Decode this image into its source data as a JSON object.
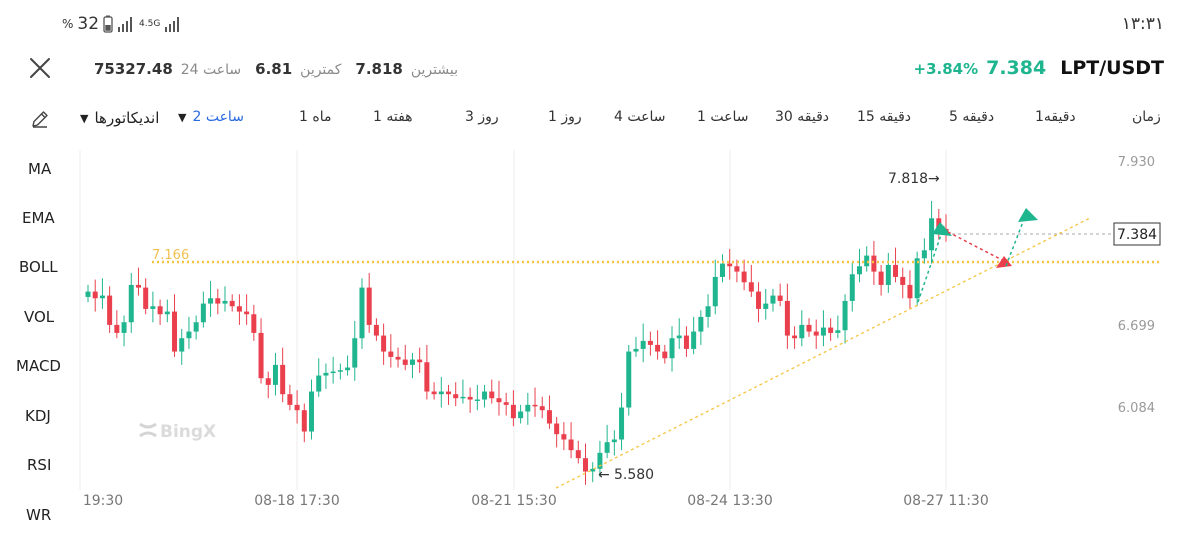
{
  "status_bar": {
    "time": "۱۳:۳۱",
    "battery": "32",
    "percent_sign": "%",
    "network": "4.5G"
  },
  "header": {
    "pair": "LPT/USDT",
    "price": "7.384",
    "change": "+3.84%",
    "high_label": "بیشترین",
    "high_value": "7.818",
    "low_label": "کمترین",
    "low_value": "6.81",
    "vol_label": "ساعت 24",
    "vol_value": "75327.48"
  },
  "timeframes": {
    "label": "زمان",
    "items": [
      "1دقیقه",
      "5 دقیقه",
      "15 دقیقه",
      "30 دقیقه",
      "1 ساعت",
      "4 ساعت",
      "1 روز",
      "3 روز",
      "1 هفته",
      "1 ماه"
    ],
    "selected": "2 ساعت",
    "indicators": "اندیکاتورها"
  },
  "indicators": [
    "MA",
    "EMA",
    "BOLL",
    "VOL",
    "MACD",
    "KDJ",
    "RSI",
    "WR"
  ],
  "watermark": "BingX",
  "colors": {
    "up": "#1fb58f",
    "down": "#ea3f4c",
    "alert": "#f5c542",
    "accent": "#2b6be0"
  },
  "chart_data": {
    "type": "candlestick",
    "y_ticks": [
      "7.930",
      "6.699",
      "6.084"
    ],
    "x_ticks": [
      "19:30",
      "08-18 17:30",
      "08-21 15:30",
      "08-24 13:30",
      "08-27 11:30"
    ],
    "ylim": [
      5.4,
      8.0
    ],
    "price_line": "7.384",
    "alert_line": {
      "value": 7.166,
      "label": "7.166"
    },
    "high_marker": "7.818",
    "low_marker": "5.580",
    "close_series": [
      6.95,
      6.9,
      6.92,
      6.7,
      6.64,
      6.72,
      7.0,
      6.98,
      6.82,
      6.84,
      6.78,
      6.8,
      6.5,
      6.6,
      6.65,
      6.72,
      6.86,
      6.9,
      6.86,
      6.88,
      6.84,
      6.8,
      6.78,
      6.64,
      6.3,
      6.25,
      6.4,
      6.18,
      6.1,
      6.06,
      5.9,
      6.2,
      6.32,
      6.34,
      6.35,
      6.36,
      6.38,
      6.6,
      6.98,
      6.7,
      6.62,
      6.5,
      6.46,
      6.44,
      6.4,
      6.44,
      6.42,
      6.2,
      6.18,
      6.2,
      6.18,
      6.15,
      6.16,
      6.14,
      6.14,
      6.2,
      6.15,
      6.12,
      6.1,
      6.0,
      6.05,
      6.1,
      6.09,
      6.06,
      5.96,
      5.88,
      5.84,
      5.76,
      5.7,
      5.6,
      5.62,
      5.74,
      5.82,
      5.84,
      6.08,
      6.5,
      6.52,
      6.58,
      6.55,
      6.5,
      6.45,
      6.6,
      6.62,
      6.52,
      6.65,
      6.76,
      6.84,
      7.06,
      7.16,
      7.14,
      7.1,
      7.02,
      6.95,
      6.82,
      6.86,
      6.92,
      6.88,
      6.62,
      6.6,
      6.7,
      6.65,
      6.62,
      6.68,
      6.64,
      6.66,
      6.88,
      7.08,
      7.14,
      7.22,
      7.1,
      7.0,
      7.15,
      7.06,
      7.0,
      6.9,
      7.2,
      7.26,
      7.5,
      7.42,
      7.384
    ]
  }
}
